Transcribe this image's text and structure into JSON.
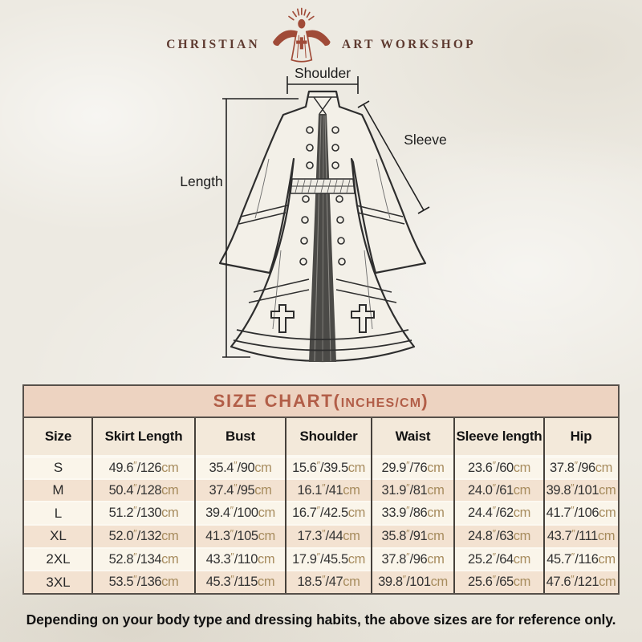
{
  "brand": {
    "name_left": "CHRISTIAN",
    "name_right": "ART WORKSHOP",
    "icon": "jesus-open-arms-rays-icon"
  },
  "diagram": {
    "shoulder_label": "Shoulder",
    "sleeve_label": "Sleeve",
    "length_label": "Length",
    "illustration": "clergy-cassock-robe-line-drawing"
  },
  "size_table": {
    "title_prefix": "SIZE CHART(",
    "title_small": "INCHES/CM",
    "title_suffix": ")",
    "inch_mark": "″",
    "separator": "/",
    "cm_label": "cm"
  },
  "chart_data": {
    "type": "table",
    "title": "SIZE CHART(INCHES/CM)",
    "columns": [
      "Size",
      "Skirt Length",
      "Bust",
      "Shoulder",
      "Waist",
      "Sleeve length",
      "Hip"
    ],
    "rows": [
      {
        "size": "S",
        "values": [
          [
            "49.6",
            "126"
          ],
          [
            "35.4",
            "90"
          ],
          [
            "15.6",
            "39.5"
          ],
          [
            "29.9",
            "76"
          ],
          [
            "23.6",
            "60"
          ],
          [
            "37.8",
            "96"
          ]
        ]
      },
      {
        "size": "M",
        "values": [
          [
            "50.4",
            "128"
          ],
          [
            "37.4",
            "95"
          ],
          [
            "16.1",
            "41"
          ],
          [
            "31.9",
            "81"
          ],
          [
            "24.0",
            "61"
          ],
          [
            "39.8",
            "101"
          ]
        ]
      },
      {
        "size": "L",
        "values": [
          [
            "51.2",
            "130"
          ],
          [
            "39.4",
            "100"
          ],
          [
            "16.7",
            "42.5"
          ],
          [
            "33.9",
            "86"
          ],
          [
            "24.4",
            "62"
          ],
          [
            "41.7",
            "106"
          ]
        ]
      },
      {
        "size": "XL",
        "values": [
          [
            "52.0",
            "132"
          ],
          [
            "41.3",
            "105"
          ],
          [
            "17.3",
            "44"
          ],
          [
            "35.8",
            "91"
          ],
          [
            "24.8",
            "63"
          ],
          [
            "43.7",
            "111"
          ]
        ]
      },
      {
        "size": "2XL",
        "values": [
          [
            "52.8",
            "134"
          ],
          [
            "43.3",
            "110"
          ],
          [
            "17.9",
            "45.5"
          ],
          [
            "37.8",
            "96"
          ],
          [
            "25.2",
            "64"
          ],
          [
            "45.7",
            "116"
          ]
        ]
      },
      {
        "size": "3XL",
        "values": [
          [
            "53.5",
            "136"
          ],
          [
            "45.3",
            "115"
          ],
          [
            "18.5",
            "47"
          ],
          [
            "39.8",
            "101"
          ],
          [
            "25.6",
            "65"
          ],
          [
            "47.6",
            "121"
          ]
        ]
      }
    ],
    "units_note": "inches/cm"
  },
  "footnote": "Depending on your body type and dressing habits, the above sizes are for reference only.",
  "colors": {
    "page_bg": "#ebe7df",
    "title_band_bg": "#edd3c1",
    "title_text": "#b25e48",
    "header_row_bg": "#f3e9da",
    "row_cream": "#faf5ea",
    "row_tan": "#f3e2d1",
    "unit_text": "#a78c5e",
    "border_dark": "#57504a",
    "logo_red": "#a04b38",
    "logo_text": "#5e3a30",
    "line_art": "#2e2e2e"
  }
}
